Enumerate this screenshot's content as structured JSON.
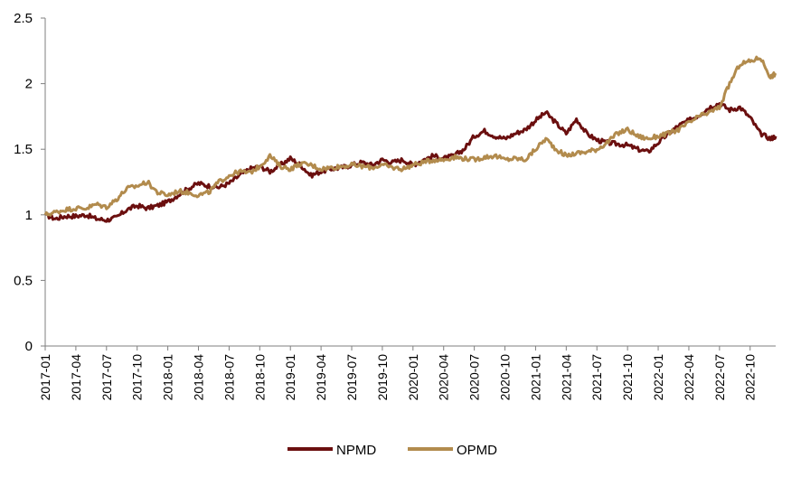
{
  "chart_data": {
    "type": "line",
    "title": "",
    "xlabel": "",
    "ylabel": "",
    "ylim": [
      0,
      2.5
    ],
    "y_ticks": [
      "0",
      "0.5",
      "1",
      "1.5",
      "2",
      "2.5"
    ],
    "x_ticks": [
      "2017-01",
      "2017-04",
      "2017-07",
      "2017-10",
      "2018-01",
      "2018-04",
      "2018-07",
      "2018-10",
      "2019-01",
      "2019-04",
      "2019-07",
      "2019-10",
      "2020-01",
      "2020-04",
      "2020-07",
      "2020-10",
      "2021-01",
      "2021-04",
      "2021-07",
      "2021-10",
      "2022-01",
      "2022-04",
      "2022-07",
      "2022-10"
    ],
    "grid": false,
    "legend_position": "bottom",
    "x_unit": "months since 2017-01",
    "series": [
      {
        "name": "NPMD",
        "color": "#6B0F0F",
        "x": [
          0,
          1,
          2,
          3,
          4,
          5,
          6,
          7,
          8,
          9,
          10,
          11,
          12,
          13,
          14,
          15,
          16,
          17,
          18,
          19,
          20,
          21,
          22,
          23,
          24,
          25,
          26,
          27,
          28,
          29,
          30,
          31,
          32,
          33,
          34,
          35,
          36,
          37,
          38,
          39,
          40,
          41,
          42,
          43,
          44,
          45,
          46,
          47,
          48,
          49,
          50,
          51,
          52,
          53,
          54,
          55,
          56,
          57,
          58,
          59,
          60,
          61,
          62,
          63,
          64,
          65,
          66,
          67,
          68,
          69,
          70,
          71,
          71.5
        ],
        "values": [
          1.0,
          0.97,
          0.99,
          0.99,
          1.0,
          0.97,
          0.96,
          0.98,
          1.04,
          1.07,
          1.05,
          1.07,
          1.1,
          1.15,
          1.2,
          1.24,
          1.22,
          1.21,
          1.24,
          1.3,
          1.35,
          1.37,
          1.33,
          1.38,
          1.43,
          1.38,
          1.3,
          1.33,
          1.35,
          1.36,
          1.38,
          1.4,
          1.38,
          1.42,
          1.4,
          1.42,
          1.38,
          1.42,
          1.45,
          1.43,
          1.45,
          1.5,
          1.6,
          1.64,
          1.6,
          1.58,
          1.62,
          1.65,
          1.72,
          1.78,
          1.7,
          1.62,
          1.73,
          1.62,
          1.57,
          1.55,
          1.54,
          1.53,
          1.5,
          1.48,
          1.55,
          1.62,
          1.68,
          1.72,
          1.76,
          1.82,
          1.85,
          1.8,
          1.82,
          1.74,
          1.62,
          1.58,
          1.6
        ]
      },
      {
        "name": "OPMD",
        "color": "#B28B4D",
        "x": [
          0,
          1,
          2,
          3,
          4,
          5,
          6,
          7,
          8,
          9,
          10,
          11,
          12,
          13,
          14,
          15,
          16,
          17,
          18,
          19,
          20,
          21,
          22,
          23,
          24,
          25,
          26,
          27,
          28,
          29,
          30,
          31,
          32,
          33,
          34,
          35,
          36,
          37,
          38,
          39,
          40,
          41,
          42,
          43,
          44,
          45,
          46,
          47,
          48,
          49,
          50,
          51,
          52,
          53,
          54,
          55,
          56,
          57,
          58,
          59,
          60,
          61,
          62,
          63,
          64,
          65,
          66,
          67,
          68,
          69,
          70,
          71,
          71.5
        ],
        "values": [
          1.0,
          1.02,
          1.04,
          1.05,
          1.05,
          1.08,
          1.06,
          1.12,
          1.2,
          1.22,
          1.25,
          1.17,
          1.15,
          1.18,
          1.17,
          1.15,
          1.17,
          1.25,
          1.3,
          1.33,
          1.32,
          1.37,
          1.45,
          1.37,
          1.35,
          1.39,
          1.38,
          1.35,
          1.36,
          1.37,
          1.38,
          1.37,
          1.36,
          1.38,
          1.36,
          1.35,
          1.38,
          1.4,
          1.42,
          1.42,
          1.44,
          1.43,
          1.42,
          1.44,
          1.45,
          1.42,
          1.43,
          1.42,
          1.5,
          1.58,
          1.5,
          1.45,
          1.47,
          1.48,
          1.5,
          1.55,
          1.62,
          1.65,
          1.6,
          1.58,
          1.6,
          1.62,
          1.65,
          1.7,
          1.75,
          1.78,
          1.82,
          2.0,
          2.15,
          2.17,
          2.2,
          2.05,
          2.08
        ]
      }
    ]
  }
}
